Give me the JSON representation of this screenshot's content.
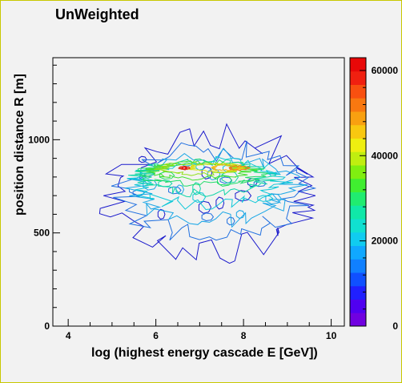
{
  "chart_data": {
    "type": "heatmap",
    "subtype": "contour",
    "title": "UnWeighted",
    "xlabel": "log (highest energy cascade E [GeV])",
    "ylabel": "position distance R [m]",
    "xlim": [
      3.65,
      10.3
    ],
    "ylim": [
      0,
      1440
    ],
    "x_ticks": [
      4,
      6,
      8,
      10
    ],
    "y_ticks": [
      0,
      500,
      1000
    ],
    "zlim": [
      0,
      63000
    ],
    "colorbar_ticks": [
      0,
      20000,
      40000,
      60000
    ],
    "colorbar_tick_labels": [
      "0",
      "20000",
      "40000",
      "60000"
    ],
    "grid": false,
    "legend": "colorbar-right",
    "contours": [
      {
        "level": 2500,
        "color": "#1a1acc",
        "x_center": 7.35,
        "y_center": 700,
        "x_halfwidth": 2.3,
        "y_halfwidth": 300
      },
      {
        "level": 7500,
        "color": "#1f6fe0",
        "x_center": 7.3,
        "y_center": 720,
        "x_halfwidth": 2.0,
        "y_halfwidth": 230
      },
      {
        "level": 12500,
        "color": "#19a6e6",
        "x_center": 7.3,
        "y_center": 740,
        "x_halfwidth": 1.8,
        "y_halfwidth": 170
      },
      {
        "level": 17500,
        "color": "#10c8d8",
        "x_center": 7.2,
        "y_center": 770,
        "x_halfwidth": 1.6,
        "y_halfwidth": 120
      },
      {
        "level": 22500,
        "color": "#12d6a8",
        "x_center": 7.1,
        "y_center": 800,
        "x_halfwidth": 1.45,
        "y_halfwidth": 85
      },
      {
        "level": 27500,
        "color": "#22dc6a",
        "x_center": 7.05,
        "y_center": 820,
        "x_halfwidth": 1.3,
        "y_halfwidth": 60
      },
      {
        "level": 32500,
        "color": "#44e030",
        "x_center": 7.0,
        "y_center": 835,
        "x_halfwidth": 1.1,
        "y_halfwidth": 42
      },
      {
        "level": 37500,
        "color": "#8fe014",
        "x_center": 7.0,
        "y_center": 845,
        "x_halfwidth": 0.9,
        "y_halfwidth": 30
      },
      {
        "level": 42500,
        "color": "#d8e010",
        "x_center": 7.4,
        "y_center": 850,
        "x_halfwidth": 0.6,
        "y_halfwidth": 22
      },
      {
        "level": 47500,
        "color": "#f2b818",
        "x_center": 7.6,
        "y_center": 850,
        "x_halfwidth": 0.3,
        "y_halfwidth": 14
      },
      {
        "level": 52500,
        "color": "#f07a1a",
        "x_center": 7.9,
        "y_center": 848,
        "x_halfwidth": 0.22,
        "y_halfwidth": 10
      },
      {
        "level": 57500,
        "color": "#e03a14",
        "x_center": 6.65,
        "y_center": 848,
        "x_halfwidth": 0.12,
        "y_halfwidth": 8
      },
      {
        "level": 62000,
        "color": "#e31010",
        "x_center": 6.65,
        "y_center": 848,
        "x_halfwidth": 0.06,
        "y_halfwidth": 5
      }
    ],
    "colorbar_colors": [
      "#7000e0",
      "#5000f0",
      "#2020ff",
      "#1050ff",
      "#1080ff",
      "#10a8ff",
      "#10ccf0",
      "#10e0d0",
      "#10e8a8",
      "#20ec70",
      "#40ee30",
      "#80ee10",
      "#c0ee10",
      "#eeee10",
      "#f8c810",
      "#f8a010",
      "#f87810",
      "#f85010",
      "#f02010",
      "#e80808"
    ]
  }
}
